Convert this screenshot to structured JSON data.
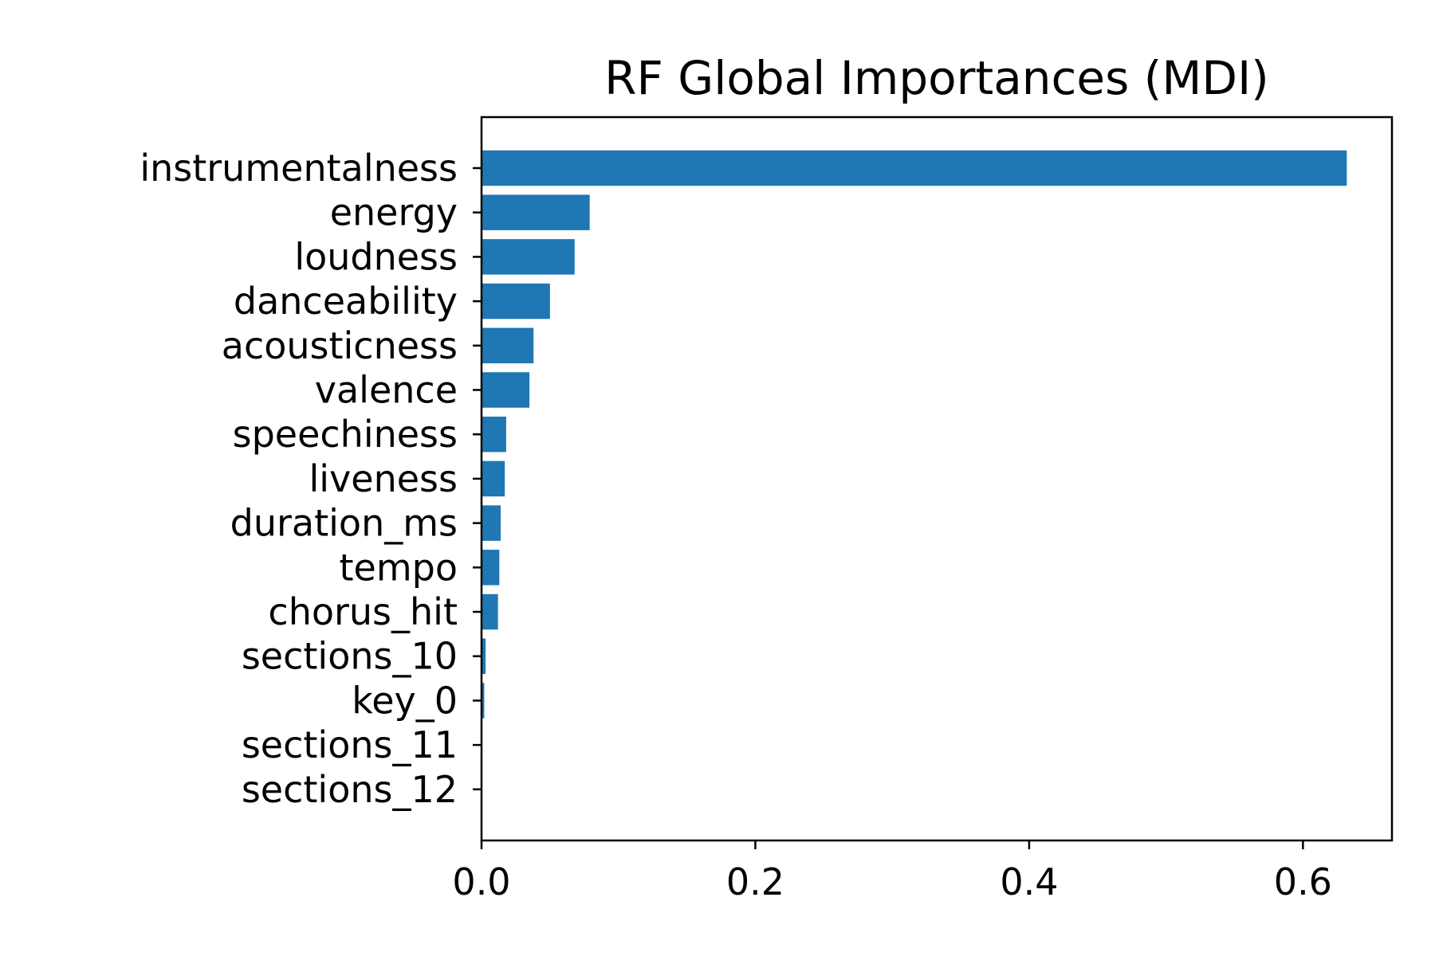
{
  "chart_data": {
    "type": "bar",
    "orientation": "horizontal",
    "title": "RF Global Importances (MDI)",
    "xlabel": "",
    "ylabel": "",
    "categories": [
      "instrumentalness",
      "energy",
      "loudness",
      "danceability",
      "acousticness",
      "valence",
      "speechiness",
      "liveness",
      "duration_ms",
      "tempo",
      "chorus_hit",
      "sections_10",
      "key_0",
      "sections_11",
      "sections_12"
    ],
    "values": [
      0.632,
      0.079,
      0.068,
      0.05,
      0.038,
      0.035,
      0.018,
      0.017,
      0.014,
      0.013,
      0.012,
      0.003,
      0.002,
      0.0005,
      0.0003
    ],
    "xlim": [
      0,
      0.665
    ],
    "xticks": [
      "0.0",
      "0.2",
      "0.4",
      "0.6"
    ],
    "grid": false,
    "bar_color": "#1f77b4"
  }
}
